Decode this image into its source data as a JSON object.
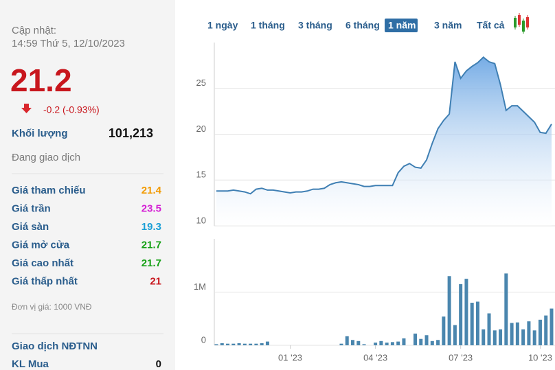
{
  "header": {
    "updated_label": "Cập nhật:",
    "updated_time": "14:59 Thứ 5, 12/10/2023",
    "price": "21.2",
    "change": "-0.2 (-0.93%)"
  },
  "volume": {
    "label": "Khối lượng",
    "value": "101,213"
  },
  "status": "Đang giao dịch",
  "stats": [
    {
      "label": "Giá tham chiếu",
      "value": "21.4",
      "color": "#f29a00"
    },
    {
      "label": "Giá trần",
      "value": "23.5",
      "color": "#d41fd4"
    },
    {
      "label": "Giá sàn",
      "value": "19.3",
      "color": "#1a9fd6"
    },
    {
      "label": "Giá mở cửa",
      "value": "21.7",
      "color": "#14a014"
    },
    {
      "label": "Giá cao nhất",
      "value": "21.7",
      "color": "#14a014"
    },
    {
      "label": "Giá thấp nhất",
      "value": "21",
      "color": "#c8161d"
    }
  ],
  "unit_note": "Đơn vị giá: 1000 VNĐ",
  "foreign": {
    "title": "Giao dịch NĐTNN",
    "rows": [
      {
        "label": "KL Mua",
        "value": "0"
      }
    ]
  },
  "range_buttons": [
    "1 ngày",
    "1 tháng",
    "3 tháng",
    "6 tháng",
    "1 năm",
    "3 năm",
    "Tất cả"
  ],
  "selected_range": 4,
  "chart_data": [
    {
      "type": "area",
      "color": "#3f7fb3",
      "grid": true,
      "ylim": [
        10,
        30
      ],
      "yticks": [
        10,
        15,
        20,
        25
      ],
      "values": [
        13.8,
        13.8,
        13.8,
        13.9,
        13.8,
        13.7,
        13.5,
        14.0,
        14.1,
        13.9,
        13.9,
        13.8,
        13.7,
        13.6,
        13.7,
        13.7,
        13.8,
        14.0,
        14.0,
        14.1,
        14.5,
        14.7,
        14.8,
        14.7,
        14.6,
        14.5,
        14.3,
        14.3,
        14.4,
        14.4,
        14.4,
        14.4,
        15.8,
        16.5,
        16.8,
        16.4,
        16.3,
        17.2,
        19.0,
        20.6,
        21.5,
        22.2,
        27.9,
        26.1,
        26.9,
        27.4,
        27.8,
        28.4,
        27.9,
        27.7,
        25.4,
        22.6,
        23.1,
        23.1,
        22.5,
        21.9,
        21.3,
        20.2,
        20.1,
        21.1
      ]
    },
    {
      "type": "bar",
      "color": "#4a86ae",
      "grid": true,
      "ylim": [
        0,
        2000000
      ],
      "yticks": [
        0,
        {
          "value": 1000000,
          "label": "1M"
        }
      ],
      "categories": [
        null,
        null,
        null,
        null,
        null,
        null,
        null,
        null,
        null,
        null,
        null,
        null,
        null,
        "01 '23",
        null,
        null,
        null,
        null,
        null,
        null,
        null,
        null,
        null,
        null,
        null,
        null,
        null,
        null,
        "04 '23",
        null,
        null,
        null,
        null,
        null,
        null,
        null,
        null,
        null,
        null,
        null,
        null,
        null,
        null,
        "07 '23",
        null,
        null,
        null,
        null,
        null,
        null,
        null,
        null,
        null,
        null,
        null,
        null,
        null,
        "10 '23",
        null,
        null
      ],
      "values": [
        20000,
        40000,
        30000,
        30000,
        40000,
        30000,
        30000,
        30000,
        40000,
        70000,
        0,
        0,
        0,
        0,
        0,
        0,
        0,
        0,
        0,
        0,
        0,
        0,
        30000,
        170000,
        100000,
        80000,
        20000,
        0,
        50000,
        80000,
        50000,
        60000,
        70000,
        130000,
        0,
        220000,
        120000,
        190000,
        80000,
        100000,
        540000,
        1300000,
        380000,
        1150000,
        1250000,
        800000,
        820000,
        300000,
        600000,
        280000,
        300000,
        1350000,
        420000,
        430000,
        300000,
        450000,
        280000,
        480000,
        560000,
        690000
      ]
    }
  ]
}
